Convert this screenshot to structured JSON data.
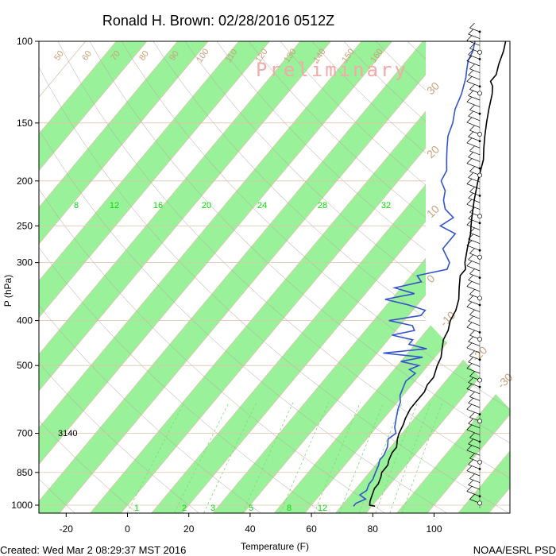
{
  "chart_data": {
    "type": "skew-t",
    "title": "Ronald H. Brown: 02/28/2016 0512Z",
    "watermark": "Preliminary",
    "xlabel": "Temperature (F)",
    "ylabel": "P (hPa)",
    "x_ticks": [
      -20,
      0,
      20,
      40,
      60,
      80,
      100
    ],
    "p_ticks": [
      100,
      150,
      200,
      250,
      300,
      400,
      500,
      700,
      850,
      1000
    ],
    "xlim": [
      -28,
      124
    ],
    "plim": [
      100,
      1040
    ],
    "mixing_ratio_labels": [
      "8",
      "12",
      "16",
      "20",
      "24",
      "28",
      "32"
    ],
    "mixing_ratio_labels_bottom": [
      "1",
      "2",
      "3",
      "5",
      "8",
      "12"
    ],
    "isotherm_labels_right": [
      "30",
      "20",
      "10",
      "0",
      "-10",
      "-20",
      "-30"
    ],
    "isotherm_labels_top": [
      "50",
      "60",
      "70",
      "80",
      "90",
      "100",
      "110",
      "120",
      "130",
      "140",
      "150",
      "160"
    ],
    "lcl_label": "3140",
    "footer_left": "Created: Wed Mar  2 08:29:37 MST 2016",
    "footer_right": "NOAA/ESRL PSD",
    "colors": {
      "temperature": "#000000",
      "dewpoint": "#3355cc",
      "isotherm_band": "#99f299",
      "isotherm_line": "#ddc4aa",
      "mixing_ratio": "#77dd77",
      "dry_adiabat": "#b8aaa0"
    },
    "series": [
      {
        "name": "Temperature",
        "pressure": [
          1005,
          1000,
          980,
          950,
          920,
          900,
          870,
          850,
          820,
          800,
          770,
          750,
          720,
          700,
          670,
          650,
          620,
          600,
          570,
          550,
          530,
          500,
          480,
          460,
          440,
          420,
          400,
          380,
          360,
          340,
          320,
          310,
          300,
          280,
          260,
          250,
          240,
          220,
          200,
          180,
          170,
          160,
          150,
          140,
          130,
          125,
          122,
          118,
          112,
          105,
          100
        ],
        "temperature": [
          81,
          79,
          78,
          77,
          76,
          76,
          75,
          74,
          74,
          73,
          72,
          72,
          70,
          69,
          68,
          67,
          66,
          66,
          66,
          65,
          65,
          63,
          62,
          60,
          58,
          57,
          55,
          54,
          52,
          49,
          46,
          46,
          44,
          41,
          38,
          36,
          34,
          30,
          26,
          22,
          19,
          16,
          13,
          10,
          7,
          5,
          3,
          3,
          1,
          -1,
          -3
        ]
      },
      {
        "name": "Dewpoint",
        "pressure": [
          1005,
          990,
          970,
          950,
          930,
          900,
          880,
          850,
          820,
          800,
          780,
          750,
          720,
          700,
          680,
          650,
          620,
          600,
          580,
          560,
          540,
          520,
          510,
          500,
          490,
          480,
          470,
          460,
          450,
          440,
          430,
          420,
          410,
          400,
          390,
          380,
          370,
          360,
          350,
          340,
          330,
          320,
          310,
          300,
          280,
          260,
          250,
          240,
          230,
          220,
          210,
          200,
          190,
          180,
          170,
          160,
          150,
          140,
          130,
          120,
          115,
          110,
          105,
          100
        ],
        "temperature": [
          74,
          74,
          76,
          73,
          74,
          73,
          73,
          72,
          71,
          70,
          70,
          69,
          67,
          68,
          66,
          64,
          62,
          61,
          59,
          58,
          57,
          58,
          55,
          57,
          50,
          56,
          42,
          55,
          48,
          48,
          40,
          46,
          44,
          35,
          44,
          44,
          37,
          28,
          36,
          28,
          35,
          32,
          40,
          39,
          33,
          33,
          26,
          28,
          23,
          20,
          18,
          14,
          13,
          10,
          7,
          4,
          2,
          -1,
          -3,
          -6,
          -8,
          -10,
          -11,
          -13
        ]
      }
    ]
  }
}
